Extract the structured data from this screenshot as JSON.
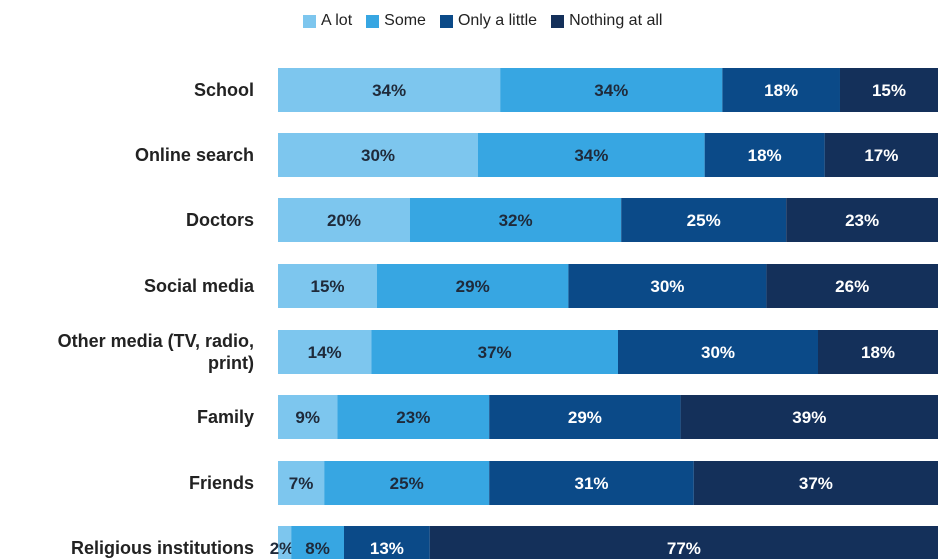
{
  "chart_data": {
    "type": "bar",
    "orientation": "horizontal",
    "stacked": true,
    "percent_stacked": true,
    "categories": [
      "School",
      "Online search",
      "Doctors",
      "Social media",
      "Other media (TV, radio, print)",
      "Family",
      "Friends",
      "Religious institutions"
    ],
    "series": [
      {
        "name": "A lot",
        "color": "#7dc6ee",
        "values": [
          34,
          30,
          20,
          15,
          14,
          9,
          7,
          2
        ]
      },
      {
        "name": "Some",
        "color": "#37a6e2",
        "values": [
          34,
          34,
          32,
          29,
          37,
          23,
          25,
          8
        ]
      },
      {
        "name": "Only a little",
        "color": "#0b4a88",
        "values": [
          18,
          18,
          25,
          30,
          30,
          29,
          31,
          13
        ]
      },
      {
        "name": "Nothing at all",
        "color": "#14305a",
        "values": [
          15,
          17,
          23,
          26,
          18,
          39,
          37,
          77
        ]
      }
    ],
    "value_labels": [
      [
        "34%",
        "34%",
        "18%",
        "15%"
      ],
      [
        "30%",
        "34%",
        "18%",
        "17%"
      ],
      [
        "20%",
        "32%",
        "25%",
        "23%"
      ],
      [
        "15%",
        "29%",
        "30%",
        "26%"
      ],
      [
        "14%",
        "37%",
        "30%",
        "18%"
      ],
      [
        "9%",
        "23%",
        "29%",
        "39%"
      ],
      [
        "7%",
        "25%",
        "31%",
        "37%"
      ],
      [
        "2%",
        "8%",
        "13%",
        "77%"
      ]
    ],
    "category_label_lines": [
      [
        "School"
      ],
      [
        "Online search"
      ],
      [
        "Doctors"
      ],
      [
        "Social media"
      ],
      [
        "Other media (TV, radio,",
        "print)"
      ],
      [
        "Family"
      ],
      [
        "Friends"
      ],
      [
        "Religious institutions"
      ]
    ],
    "xlim": [
      0,
      100
    ],
    "legend_position": "top",
    "grid": false
  }
}
